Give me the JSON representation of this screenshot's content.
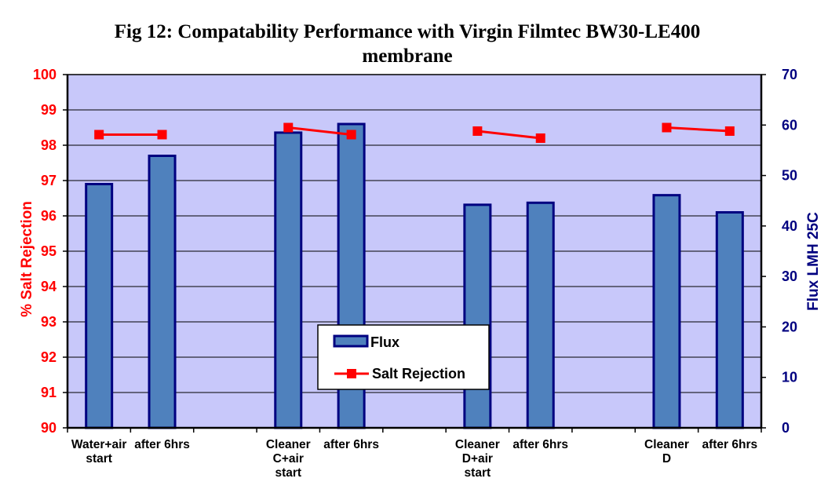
{
  "chart_data": {
    "type": "bar",
    "title_lines": [
      "Fig 12: Compatability Performance with Virgin Filmtec BW30-LE400",
      "membrane"
    ],
    "ylabel_left": "% Salt Rejection",
    "ylabel_right": "Flux LMH 25C",
    "categories": [
      [
        "Water+air",
        "start"
      ],
      [
        "after 6hrs"
      ],
      [],
      [
        "Cleaner",
        "C+air",
        "start"
      ],
      [
        "after 6hrs"
      ],
      [],
      [
        "Cleaner",
        "D+air",
        "start"
      ],
      [
        "after 6hrs"
      ],
      [],
      [
        "Cleaner",
        "D"
      ],
      [
        "after 6hrs"
      ]
    ],
    "ylim_left": [
      90,
      100
    ],
    "yticks_left": [
      "90",
      "91",
      "92",
      "93",
      "94",
      "95",
      "96",
      "97",
      "98",
      "99",
      "100"
    ],
    "ylim_right": [
      0,
      70
    ],
    "yticks_right": [
      "0",
      "10",
      "20",
      "30",
      "40",
      "50",
      "60",
      "70"
    ],
    "grid": true,
    "legend_position": "center-bottom",
    "series": [
      {
        "name": "Flux",
        "type": "bar",
        "axis": "right",
        "color": "#4f81bd",
        "edge_color": "#000080",
        "values": [
          48.3,
          53.9,
          null,
          58.5,
          60.2,
          null,
          44.2,
          44.6,
          null,
          46.1,
          42.7
        ]
      },
      {
        "name": "Salt Rejection",
        "type": "line",
        "axis": "left",
        "color": "#ff0000",
        "values": [
          98.3,
          98.3,
          null,
          98.5,
          98.3,
          null,
          98.4,
          98.2,
          null,
          98.5,
          98.4
        ]
      }
    ]
  },
  "colors": {
    "plot_background": "#c8c8fa",
    "gridline": "#000000",
    "left_axis_text": "#ff0000",
    "right_axis_text": "#000080"
  }
}
